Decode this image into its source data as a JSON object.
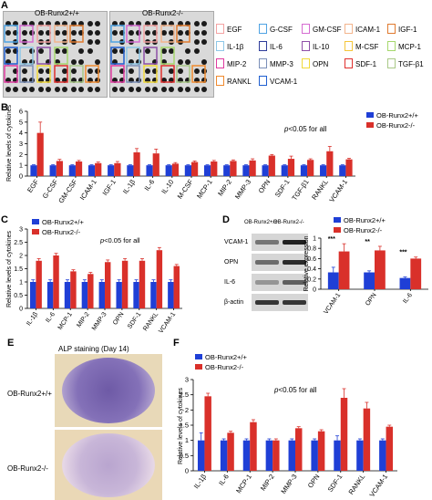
{
  "panel_a": {
    "letter": "A",
    "left_title": "OB-Runx2+/+",
    "right_title": "OB-Runx2-/-",
    "legend": [
      {
        "label": "EGF",
        "color": "#f4a3a3"
      },
      {
        "label": "G-CSF",
        "color": "#4fa3e3"
      },
      {
        "label": "GM-CSF",
        "color": "#d56bd1"
      },
      {
        "label": "ICAM-1",
        "color": "#f3b48c"
      },
      {
        "label": "IGF-1",
        "color": "#e07a2f"
      },
      {
        "label": "IL-1β",
        "color": "#8ec7e8"
      },
      {
        "label": "IL-6",
        "color": "#2e3c9a"
      },
      {
        "label": "IL-10",
        "color": "#8e4fa8"
      },
      {
        "label": "M-CSF",
        "color": "#f5c63a"
      },
      {
        "label": "MCP-1",
        "color": "#a6d86d"
      },
      {
        "label": "MIP-2",
        "color": "#e03aa0"
      },
      {
        "label": "MMP-3",
        "color": "#7b8fb8"
      },
      {
        "label": "OPN",
        "color": "#f2da3a"
      },
      {
        "label": "SDF-1",
        "color": "#e0302e"
      },
      {
        "label": "TGF-β1",
        "color": "#a9c987"
      },
      {
        "label": "RANKL",
        "color": "#f08a2e"
      },
      {
        "label": "VCAM-1",
        "color": "#1f5fd0"
      }
    ]
  },
  "panel_b": {
    "letter": "B",
    "ylabel": "Relative levels of cytokines",
    "note": "p<0.05 for all",
    "legend_wt": "OB-Runx2+/+",
    "legend_ko": "OB-Runx2-/-"
  },
  "panel_c": {
    "letter": "C",
    "ylabel": "Relative levels of cytokines",
    "note": "p<0.05 for all",
    "legend_wt": "OB-Runx2+/+",
    "legend_ko": "OB-Runx2-/-"
  },
  "panel_d": {
    "letter": "D",
    "blot_header_wt": "OB-Runx2+/+",
    "blot_header_ko": "OB-Runx2-/-",
    "blot_rows": [
      "VCAM-1",
      "OPN",
      "IL-6",
      "β-actin"
    ],
    "ylabel": "Relative expression",
    "legend_wt": "OB-Runx2+/+",
    "legend_ko": "OB-Runx2-/-",
    "sig": [
      "***",
      "**",
      "***"
    ]
  },
  "panel_e": {
    "letter": "E",
    "title": "ALP staining (Day 14)",
    "row1": "OB-Runx2+/+",
    "row2": "OB-Runx2-/-"
  },
  "panel_f": {
    "letter": "F",
    "ylabel": "Relative levels of cytokines",
    "note": "p<0.05 for all",
    "legend_wt": "OB-Runx2+/+",
    "legend_ko": "OB-Runx2-/-"
  },
  "colors": {
    "wt": "#1f3fd6",
    "ko": "#d9302a"
  },
  "chart_data": [
    {
      "id": "B",
      "type": "bar",
      "categories": [
        "EGF",
        "G-CSF",
        "GM-CSF",
        "ICAM-1",
        "IGF-1",
        "IL-1β",
        "IL-6",
        "IL-10",
        "M-CSF",
        "MCP-1",
        "MIP-2",
        "MMP-3",
        "OPN",
        "SDF-1",
        "TGF-β1",
        "RANKL",
        "VCAM-1"
      ],
      "series": [
        {
          "name": "OB-Runx2+/+",
          "values": [
            1,
            1,
            1,
            1,
            1,
            1,
            1,
            1,
            1,
            1,
            1,
            1,
            1,
            1,
            1,
            1,
            1
          ],
          "err": [
            0.05,
            0.05,
            0.05,
            0.05,
            0.05,
            0.05,
            0.05,
            0.05,
            0.05,
            0.05,
            0.05,
            0.05,
            0.05,
            0.05,
            0.05,
            0.05,
            0.05
          ]
        },
        {
          "name": "OB-Runx2-/-",
          "values": [
            4.0,
            1.4,
            1.35,
            1.2,
            1.2,
            2.2,
            2.1,
            1.15,
            1.3,
            1.35,
            1.4,
            1.45,
            1.9,
            1.6,
            1.5,
            2.3,
            1.55
          ],
          "err": [
            1.0,
            0.15,
            0.1,
            0.1,
            0.15,
            0.35,
            0.4,
            0.1,
            0.1,
            0.1,
            0.1,
            0.15,
            0.1,
            0.25,
            0.1,
            0.45,
            0.1
          ]
        }
      ],
      "ylim": [
        0,
        6
      ],
      "yticks": [
        0,
        1,
        2,
        3,
        4,
        5,
        6
      ]
    },
    {
      "id": "C",
      "type": "bar",
      "categories": [
        "IL-1β",
        "IL-6",
        "MCP-1",
        "MIP-2",
        "MMP-3",
        "OPN",
        "SDF-1",
        "RANKL",
        "VCAM-1"
      ],
      "series": [
        {
          "name": "OB-Runx2+/+",
          "values": [
            1,
            1,
            1,
            1,
            1,
            1,
            1,
            1,
            1
          ],
          "err": [
            0.08,
            0.08,
            0.08,
            0.08,
            0.08,
            0.08,
            0.08,
            0.08,
            0.08
          ]
        },
        {
          "name": "OB-Runx2-/-",
          "values": [
            1.8,
            2.0,
            1.4,
            1.3,
            1.75,
            1.8,
            1.8,
            2.2,
            1.6
          ],
          "err": [
            0.08,
            0.08,
            0.06,
            0.06,
            0.08,
            0.08,
            0.08,
            0.1,
            0.06
          ]
        }
      ],
      "ylim": [
        0,
        3
      ],
      "yticks": [
        0,
        0.5,
        1,
        1.5,
        2,
        2.5,
        3
      ]
    },
    {
      "id": "D",
      "type": "bar",
      "categories": [
        "VCAM-1",
        "OPN",
        "IL-6"
      ],
      "series": [
        {
          "name": "OB-Runx2+/+",
          "values": [
            0.33,
            0.33,
            0.22
          ],
          "err": [
            0.1,
            0.03,
            0.02
          ]
        },
        {
          "name": "OB-Runx2-/-",
          "values": [
            0.74,
            0.76,
            0.6
          ],
          "err": [
            0.15,
            0.08,
            0.03
          ]
        }
      ],
      "ylim": [
        0,
        1
      ],
      "yticks": [
        0,
        0.2,
        0.4,
        0.6,
        0.8,
        1
      ]
    },
    {
      "id": "F",
      "type": "bar",
      "categories": [
        "IL-1β",
        "IL-6",
        "MCP-1",
        "MIP-2",
        "MMP-3",
        "OPN",
        "SDF-1",
        "RANKL",
        "VCAM-1"
      ],
      "series": [
        {
          "name": "OB-Runx2+/+",
          "values": [
            1,
            1,
            1,
            1,
            1,
            1,
            1,
            1,
            1
          ],
          "err": [
            0.25,
            0.05,
            0.05,
            0.05,
            0.05,
            0.05,
            0.15,
            0.05,
            0.05
          ]
        },
        {
          "name": "OB-Runx2-/-",
          "values": [
            2.45,
            1.25,
            1.6,
            1.0,
            1.4,
            1.3,
            2.4,
            2.05,
            1.45
          ],
          "err": [
            0.1,
            0.05,
            0.08,
            0.05,
            0.05,
            0.05,
            0.3,
            0.2,
            0.05
          ]
        }
      ],
      "ylim": [
        0,
        3
      ],
      "yticks": [
        0,
        0.5,
        1,
        1.5,
        2,
        2.5,
        3
      ]
    }
  ]
}
